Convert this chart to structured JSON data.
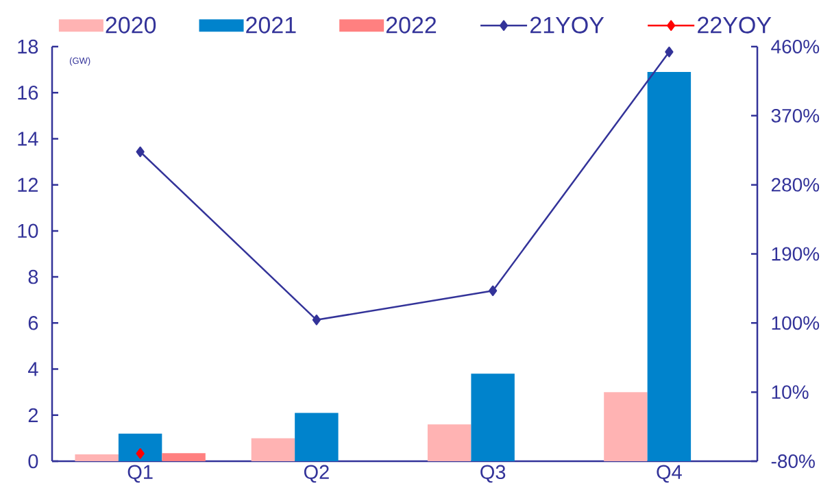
{
  "chart_data": {
    "type": "bar",
    "categories": [
      "Q1",
      "Q2",
      "Q3",
      "Q4"
    ],
    "series": [
      {
        "name": "2020",
        "color": "#ffb3b3",
        "values": [
          0.3,
          1.0,
          1.6,
          3.0
        ]
      },
      {
        "name": "2021",
        "color": "#0083cc",
        "values": [
          1.2,
          2.1,
          3.8,
          16.9
        ]
      },
      {
        "name": "2022",
        "color": "#ff8080",
        "values": [
          0.35,
          null,
          null,
          null
        ]
      },
      {
        "name": "21YOY",
        "type": "line",
        "axis": "y2",
        "color": "#333399",
        "marker": "diamond",
        "values": [
          323,
          104,
          142,
          453
        ]
      },
      {
        "name": "22YOY",
        "type": "line",
        "axis": "y2",
        "color": "#ff0000",
        "marker": "diamond",
        "values": [
          -70,
          null,
          null,
          null
        ]
      }
    ],
    "ylabel": "(GW)",
    "ylim": [
      0,
      18
    ],
    "yticks": [
      0,
      2,
      4,
      6,
      8,
      10,
      12,
      14,
      16,
      18
    ],
    "y2lim": [
      -80,
      460
    ],
    "y2ticks": [
      {
        "value": -80,
        "label": "-80%"
      },
      {
        "value": 10,
        "label": "10%"
      },
      {
        "value": 100,
        "label": "100%"
      },
      {
        "value": 190,
        "label": "190%"
      },
      {
        "value": 280,
        "label": "280%"
      },
      {
        "value": 370,
        "label": "370%"
      },
      {
        "value": 460,
        "label": "460%"
      }
    ],
    "legend": "top"
  }
}
